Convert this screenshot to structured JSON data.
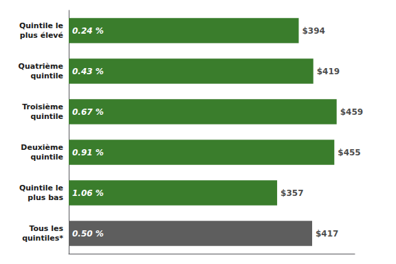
{
  "chart_data": {
    "type": "bar",
    "orientation": "horizontal",
    "categories": [
      "Quintile le\nplus élevé",
      "Quatrième\nquintile",
      "Troisième\nquintile",
      "Deuxième\nquintile",
      "Quintile le\nplus bas",
      "Tous les\nquintiles*"
    ],
    "values": [
      394,
      419,
      459,
      455,
      357,
      417
    ],
    "value_labels": [
      "$394",
      "$419",
      "$459",
      "$455",
      "$357",
      "$417"
    ],
    "data_labels": true,
    "annotations": [
      {
        "category": "Quintile le\nplus élevé",
        "text": "0.24 %"
      },
      {
        "category": "Quatrième\nquintile",
        "text": "0.43 %"
      },
      {
        "category": "Troisième\nquintile",
        "text": "0.67 %"
      },
      {
        "category": "Deuxième\nquintile",
        "text": "0.91 %"
      },
      {
        "category": "Quintile le\nplus bas",
        "text": "1.06 %"
      },
      {
        "category": "Tous les\nquintiles*",
        "text": "0.50 %"
      }
    ],
    "colors": [
      "#3a7d2c",
      "#3a7d2c",
      "#3a7d2c",
      "#3a7d2c",
      "#3a7d2c",
      "#5e5e5e"
    ],
    "xlim": [
      0,
      490
    ],
    "tick_labels": "y",
    "grid": false
  }
}
